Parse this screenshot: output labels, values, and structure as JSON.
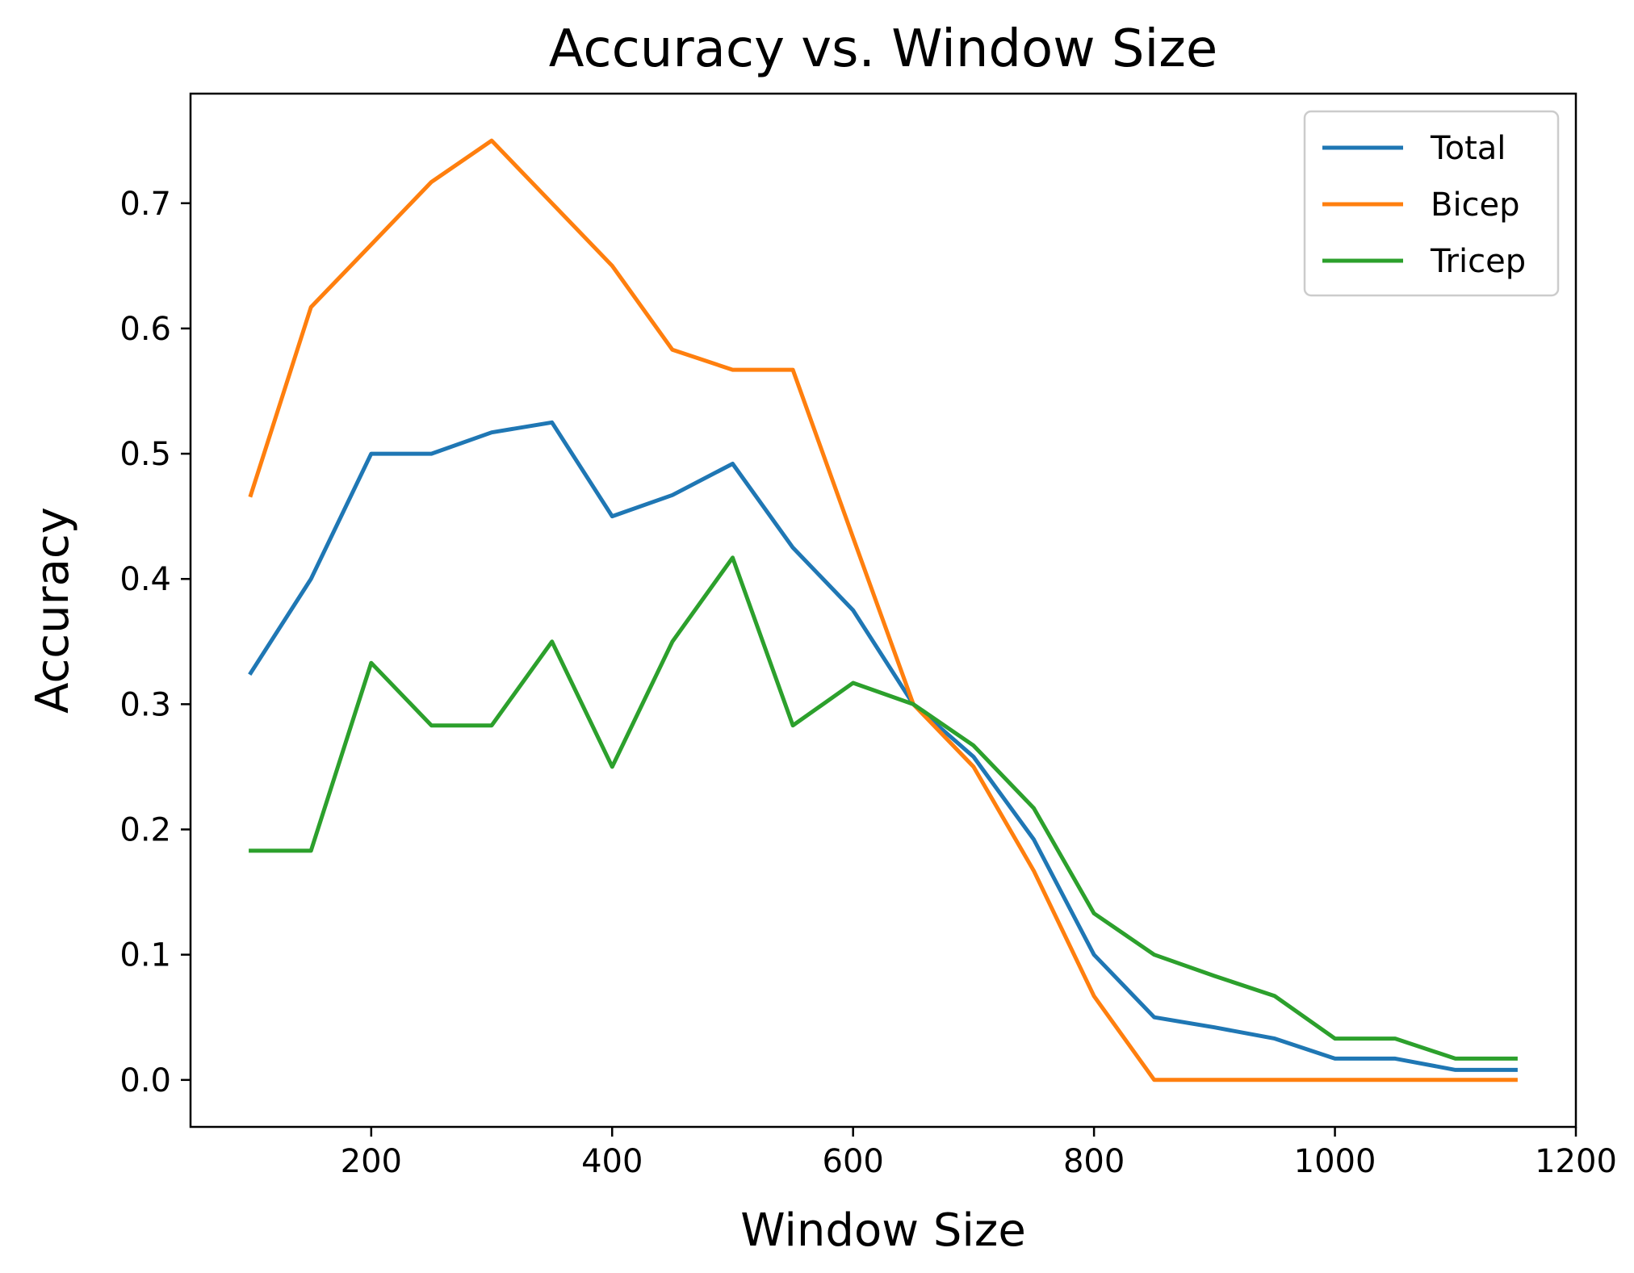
{
  "chart_data": {
    "type": "line",
    "title": "Accuracy vs. Window Size",
    "xlabel": "Window Size",
    "ylabel": "Accuracy",
    "xlim": [
      50,
      1200
    ],
    "ylim": [
      -0.0375,
      0.7875
    ],
    "xticks": [
      200,
      400,
      600,
      800,
      1000,
      1200
    ],
    "yticks": [
      0.0,
      0.1,
      0.2,
      0.3,
      0.4,
      0.5,
      0.6,
      0.7
    ],
    "xtick_labels": [
      "200",
      "400",
      "600",
      "800",
      "1000",
      "1200"
    ],
    "ytick_labels": [
      "0.0",
      "0.1",
      "0.2",
      "0.3",
      "0.4",
      "0.5",
      "0.6",
      "0.7"
    ],
    "grid": false,
    "legend_position": "top-right",
    "x": [
      100,
      150,
      200,
      250,
      300,
      350,
      400,
      450,
      500,
      550,
      600,
      650,
      700,
      750,
      800,
      850,
      900,
      950,
      1000,
      1050,
      1100,
      1150
    ],
    "series": [
      {
        "name": "Total",
        "color": "#1f77b4",
        "values": [
          0.325,
          0.4,
          0.5,
          0.5,
          0.517,
          0.525,
          0.45,
          0.467,
          0.492,
          0.425,
          0.375,
          0.3,
          0.258,
          0.192,
          0.1,
          0.05,
          0.042,
          0.033,
          0.017,
          0.017,
          0.008,
          0.008
        ]
      },
      {
        "name": "Bicep",
        "color": "#ff7f0e",
        "values": [
          0.467,
          0.617,
          0.667,
          0.717,
          0.75,
          0.7,
          0.65,
          0.583,
          0.567,
          0.567,
          0.433,
          0.3,
          0.25,
          0.167,
          0.067,
          0.0,
          0.0,
          0.0,
          0.0,
          0.0,
          0.0,
          0.0
        ]
      },
      {
        "name": "Tricep",
        "color": "#2ca02c",
        "values": [
          0.183,
          0.183,
          0.333,
          0.283,
          0.283,
          0.35,
          0.25,
          0.35,
          0.417,
          0.283,
          0.317,
          0.3,
          0.267,
          0.217,
          0.133,
          0.1,
          0.083,
          0.067,
          0.033,
          0.033,
          0.017,
          0.017
        ]
      }
    ]
  }
}
